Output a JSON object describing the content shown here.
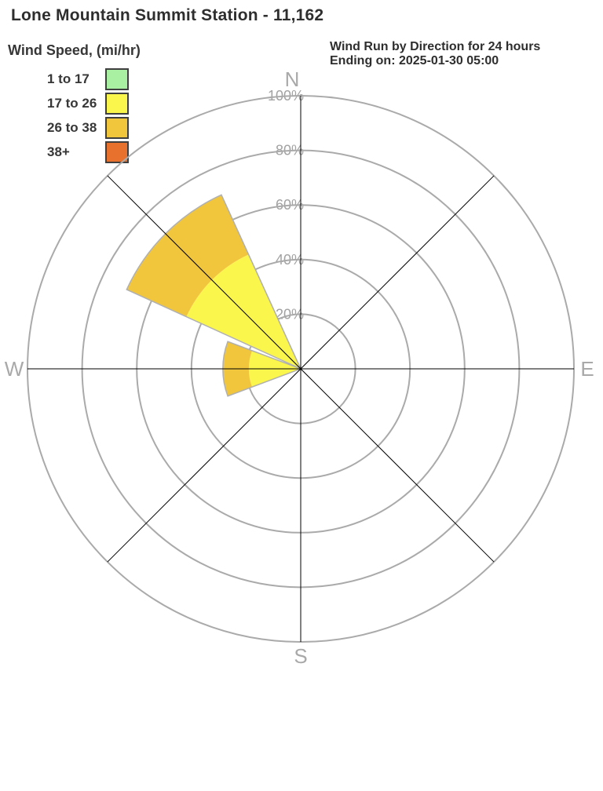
{
  "page": {
    "title": "Lone Mountain Summit Station - 11,162"
  },
  "header_right": {
    "line1": "Wind Run by Direction for 24 hours",
    "line2": "Ending on: 2025-01-30 05:00"
  },
  "legend": {
    "title": "Wind Speed, (mi/hr)",
    "items": [
      {
        "label": "1 to 17",
        "color": "#a9f0a2"
      },
      {
        "label": "17 to 26",
        "color": "#fbf64c"
      },
      {
        "label": "26 to 38",
        "color": "#f1c63d"
      },
      {
        "label": "38+",
        "color": "#e8712d"
      }
    ]
  },
  "chart_data": {
    "type": "windrose",
    "title": "Wind Run by Direction for 24 hours",
    "subtitle": "Ending on: 2025-01-30 05:00",
    "value_unit": "percent of wind run",
    "rlim": [
      0,
      100
    ],
    "grid": true,
    "legend_position": "top-left",
    "ring_ticks": [
      {
        "value": 20,
        "label": "20%"
      },
      {
        "value": 40,
        "label": "40%"
      },
      {
        "value": 60,
        "label": "60%"
      },
      {
        "value": 80,
        "label": "80%"
      },
      {
        "value": 100,
        "label": "100%"
      }
    ],
    "compass_points": [
      {
        "label": "N",
        "deg": 0
      },
      {
        "label": "E",
        "deg": 90
      },
      {
        "label": "S",
        "deg": 180
      },
      {
        "label": "W",
        "deg": 270
      }
    ],
    "spoke_degrees": [
      0,
      45,
      90,
      135,
      180,
      225,
      270,
      315
    ],
    "sector_width_deg": 41,
    "speed_bins": [
      {
        "bin": "1 to 17",
        "color": "#a9f0a2"
      },
      {
        "bin": "17 to 26",
        "color": "#fbf64c"
      },
      {
        "bin": "26 to 38",
        "color": "#f1c63d"
      },
      {
        "bin": "38+",
        "color": "#e8712d"
      }
    ],
    "directions": [
      {
        "name": "NW",
        "center_deg": 315,
        "segments": [
          {
            "bin": "17 to 26",
            "color": "#fbf64c",
            "inner": 0,
            "outer": 46
          },
          {
            "bin": "26 to 38",
            "color": "#f1c63d",
            "inner": 46,
            "outer": 70
          }
        ]
      },
      {
        "name": "W",
        "center_deg": 270,
        "segments": [
          {
            "bin": "17 to 26",
            "color": "#fbf64c",
            "inner": 0,
            "outer": 19
          },
          {
            "bin": "26 to 38",
            "color": "#f1c63d",
            "inner": 19,
            "outer": 28.5
          }
        ]
      }
    ],
    "colors": {
      "grid_circle": "#aaaaaa",
      "spoke": "#000000",
      "ring_label": "#a2a2a2",
      "compass_label": "#a9a9a9",
      "wedge_outline": "#b0b0b0"
    }
  }
}
